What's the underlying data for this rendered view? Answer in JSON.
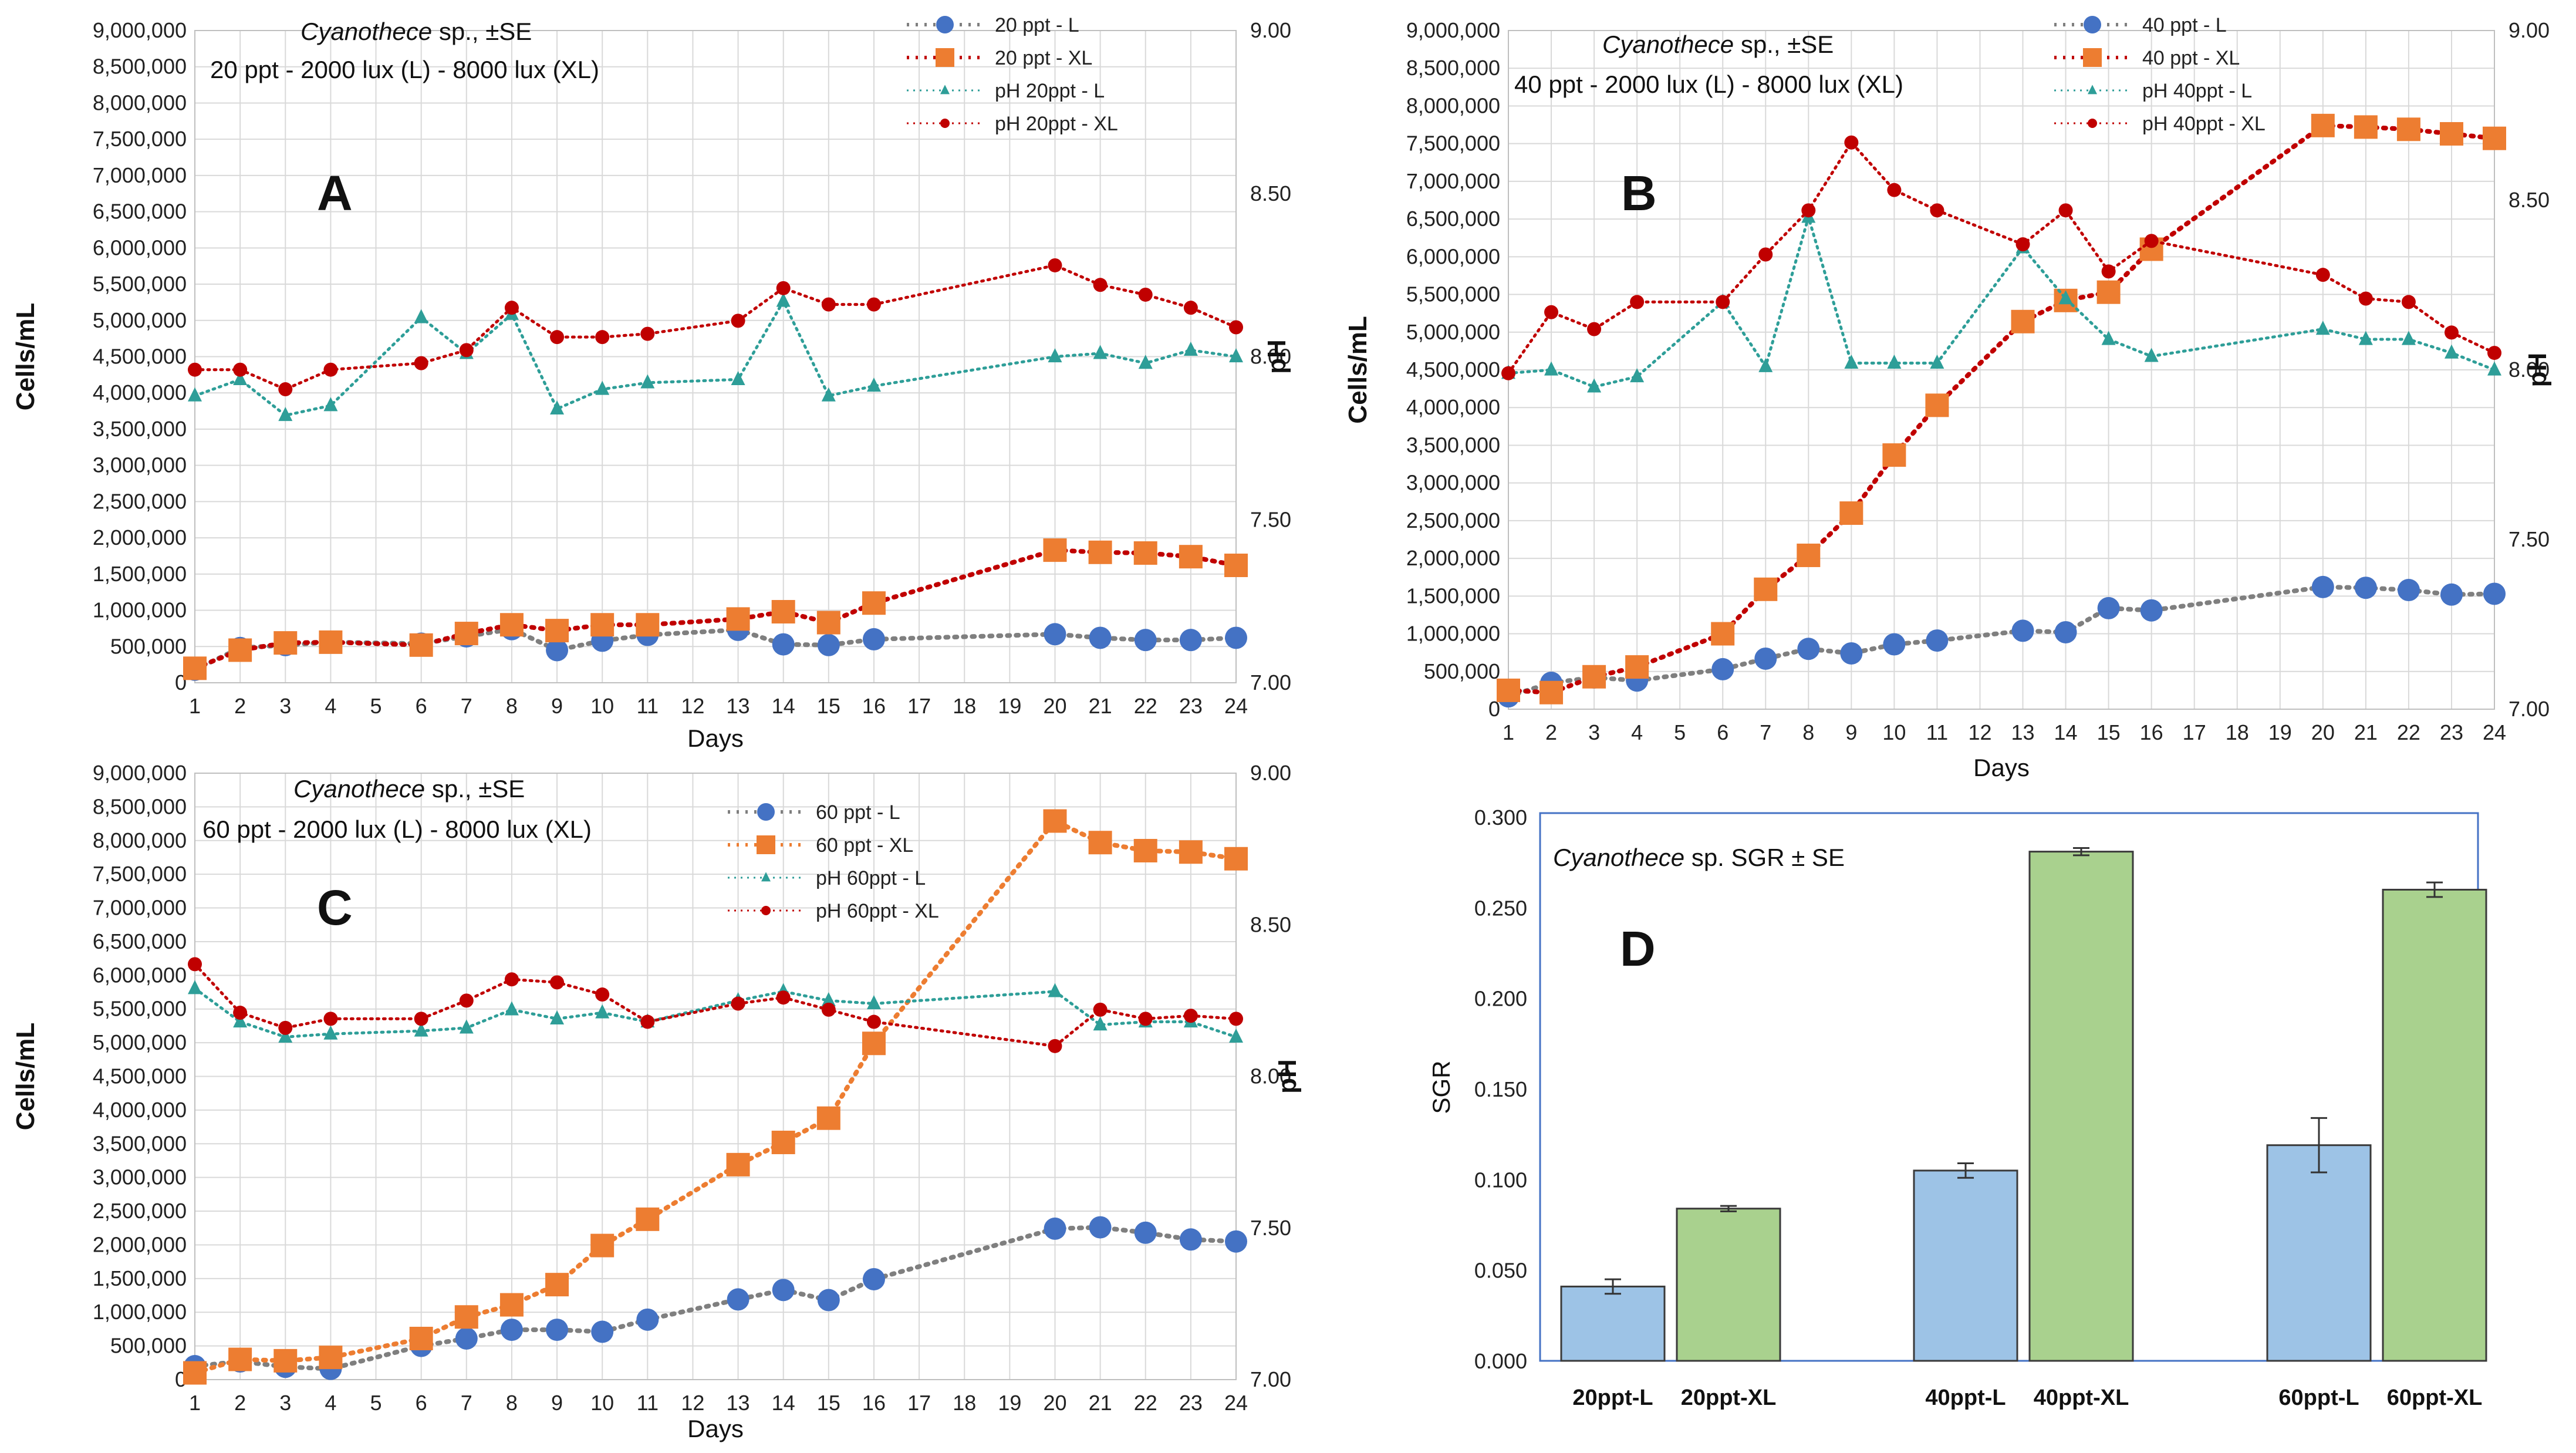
{
  "colors": {
    "L": "#4472C4",
    "XL": "#ED7D31",
    "XL_line_A": "#C00000",
    "XL_line_B": "#C00000",
    "XL_line_C": "#ED7D31",
    "L_line": "#7F7F7F",
    "pH_L": "#2E9E98",
    "pH_XL": "#C00000",
    "bar_L": "#9DC3E6",
    "bar_XL": "#A9D18E",
    "grid": "#D9D9D9",
    "frame": "#4472C4"
  },
  "line_charts": [
    {
      "id": "A",
      "panel_letter": "A",
      "title_species": "Cyanothece",
      "title_rest": " sp., ±SE",
      "subtitle": "20 ppt - 2000 lux (L) - 8000 lux (XL)",
      "xlabel": "Days",
      "ylabel": "Cells/mL",
      "ylabel2": "pH",
      "y_ticks": [
        "0",
        "500,000",
        "1,000,000",
        "1,500,000",
        "2,000,000",
        "2,500,000",
        "3,000,000",
        "3,500,000",
        "4,000,000",
        "4,500,000",
        "5,000,000",
        "5,500,000",
        "6,000,000",
        "6,500,000",
        "7,000,000",
        "7,500,000",
        "8,000,000",
        "8,500,000",
        "9,000,000"
      ],
      "y2_ticks": [
        "7.00",
        "7.50",
        "8.00",
        "8.50",
        "9.00"
      ],
      "x_ticks": [
        "1",
        "2",
        "3",
        "4",
        "5",
        "6",
        "7",
        "8",
        "9",
        "10",
        "11",
        "12",
        "13",
        "14",
        "15",
        "16",
        "17",
        "18",
        "19",
        "20",
        "21",
        "22",
        "23",
        "24"
      ],
      "legend": [
        "20 ppt - L",
        "20 ppt - XL",
        "pH 20ppt - L",
        "pH 20ppt - XL"
      ]
    },
    {
      "id": "B",
      "panel_letter": "B",
      "title_species": "Cyanothece",
      "title_rest": " sp., ±SE",
      "subtitle": "40 ppt - 2000 lux (L) - 8000 lux (XL)",
      "xlabel": "Days",
      "ylabel": "Cells/mL",
      "ylabel2": "pH",
      "y_ticks": [
        "0",
        "500,000",
        "1,000,000",
        "1,500,000",
        "2,000,000",
        "2,500,000",
        "3,000,000",
        "3,500,000",
        "4,000,000",
        "4,500,000",
        "5,000,000",
        "5,500,000",
        "6,000,000",
        "6,500,000",
        "7,000,000",
        "7,500,000",
        "8,000,000",
        "8,500,000",
        "9,000,000"
      ],
      "y2_ticks": [
        "7.00",
        "7.50",
        "8.00",
        "8.50",
        "9.00"
      ],
      "x_ticks": [
        "1",
        "2",
        "3",
        "4",
        "5",
        "6",
        "7",
        "8",
        "9",
        "10",
        "11",
        "12",
        "13",
        "14",
        "15",
        "16",
        "17",
        "18",
        "19",
        "20",
        "21",
        "22",
        "23",
        "24"
      ],
      "legend": [
        "40 ppt - L",
        "40 ppt - XL",
        "pH 40ppt - L",
        "pH 40ppt - XL"
      ]
    },
    {
      "id": "C",
      "panel_letter": "C",
      "title_species": "Cyanothece",
      "title_rest": " sp., ±SE",
      "subtitle": "60 ppt - 2000 lux (L) - 8000 lux (XL)",
      "xlabel": "Days",
      "ylabel": "Cells/mL",
      "ylabel2": "pH",
      "y_ticks": [
        "0",
        "500,000",
        "1,000,000",
        "1,500,000",
        "2,000,000",
        "2,500,000",
        "3,000,000",
        "3,500,000",
        "4,000,000",
        "4,500,000",
        "5,000,000",
        "5,500,000",
        "6,000,000",
        "6,500,000",
        "7,000,000",
        "7,500,000",
        "8,000,000",
        "8,500,000",
        "9,000,000"
      ],
      "y2_ticks": [
        "7.00",
        "7.50",
        "8.00",
        "8.50",
        "9.00"
      ],
      "x_ticks": [
        "1",
        "2",
        "3",
        "4",
        "5",
        "6",
        "7",
        "8",
        "9",
        "10",
        "11",
        "12",
        "13",
        "14",
        "15",
        "16",
        "17",
        "18",
        "19",
        "20",
        "21",
        "22",
        "23",
        "24"
      ],
      "legend": [
        "60 ppt - L",
        "60 ppt - XL",
        "pH 60ppt - L",
        "pH 60ppt - XL"
      ]
    }
  ],
  "bar_chart": {
    "panel_letter": "D",
    "title_species": "Cyanothece",
    "title_rest": " sp. SGR ± SE",
    "ylabel": "SGR",
    "y_ticks": [
      "0.000",
      "0.050",
      "0.100",
      "0.150",
      "0.200",
      "0.250",
      "0.300"
    ],
    "categories": [
      "20ppt-L",
      "20ppt-XL",
      "40ppt-L",
      "40ppt-XL",
      "60ppt-L",
      "60ppt-XL"
    ]
  },
  "chart_data": [
    {
      "type": "line",
      "panel": "A",
      "title": "Cyanothece sp., ±SE",
      "subtitle": "20 ppt - 2000 lux (L) - 8000 lux (XL)",
      "xlabel": "Days",
      "ylabel": "Cells/mL",
      "y2label": "pH",
      "ylim": [
        0,
        9000000
      ],
      "y2lim": [
        7.0,
        9.0
      ],
      "x": [
        1,
        2,
        3,
        4,
        6,
        7,
        8,
        9,
        10,
        11,
        13,
        14,
        15,
        16,
        20,
        21,
        22,
        23,
        24
      ],
      "series": [
        {
          "name": "20 ppt - L",
          "axis": "y",
          "values": [
            180000,
            480000,
            520000,
            560000,
            540000,
            640000,
            740000,
            450000,
            580000,
            660000,
            730000,
            530000,
            520000,
            600000,
            670000,
            620000,
            590000,
            590000,
            620000
          ]
        },
        {
          "name": "20 ppt - XL",
          "axis": "y",
          "values": [
            200000,
            450000,
            550000,
            560000,
            520000,
            680000,
            800000,
            720000,
            800000,
            800000,
            880000,
            980000,
            830000,
            1100000,
            1830000,
            1800000,
            1790000,
            1740000,
            1620000
          ]
        },
        {
          "name": "pH 20ppt - L",
          "axis": "y2",
          "values": [
            7.88,
            7.93,
            7.82,
            7.85,
            8.12,
            8.01,
            8.13,
            7.84,
            7.9,
            7.92,
            7.93,
            8.17,
            7.88,
            7.91,
            8.0,
            8.01,
            7.98,
            8.02,
            8.0
          ]
        },
        {
          "name": "pH 20ppt - XL",
          "axis": "y2",
          "values": [
            7.96,
            7.96,
            7.9,
            7.96,
            7.98,
            8.02,
            8.15,
            8.06,
            8.06,
            8.07,
            8.11,
            8.21,
            8.16,
            8.16,
            8.28,
            8.22,
            8.19,
            8.15,
            8.09
          ]
        }
      ]
    },
    {
      "type": "line",
      "panel": "B",
      "title": "Cyanothece sp., ±SE",
      "subtitle": "40 ppt - 2000 lux (L) - 8000 lux (XL)",
      "xlabel": "Days",
      "ylabel": "Cells/mL",
      "y2label": "pH",
      "ylim": [
        0,
        9000000
      ],
      "y2lim": [
        7.0,
        9.0
      ],
      "x": [
        1,
        2,
        3,
        4,
        6,
        7,
        8,
        9,
        10,
        11,
        13,
        14,
        15,
        16,
        20,
        21,
        22,
        23,
        24
      ],
      "series": [
        {
          "name": "40 ppt - L",
          "axis": "y",
          "values": [
            170000,
            350000,
            420000,
            380000,
            530000,
            670000,
            800000,
            740000,
            860000,
            910000,
            1040000,
            1020000,
            1340000,
            1310000,
            1620000,
            1610000,
            1580000,
            1520000,
            1530000
          ]
        },
        {
          "name": "40 ppt - XL",
          "axis": "y",
          "values": [
            250000,
            220000,
            430000,
            560000,
            1000000,
            1590000,
            2040000,
            2600000,
            3370000,
            4030000,
            5140000,
            5420000,
            5530000,
            6100000,
            7740000,
            7720000,
            7690000,
            7630000,
            7570000
          ]
        },
        {
          "name": "pH 40ppt - L",
          "axis": "y2",
          "values": [
            7.99,
            8.0,
            7.95,
            7.98,
            8.2,
            8.01,
            8.45,
            8.02,
            8.02,
            8.02,
            8.36,
            8.21,
            8.09,
            8.04,
            8.12,
            8.09,
            8.09,
            8.05,
            8.0
          ]
        },
        {
          "name": "pH 40ppt - XL",
          "axis": "y2",
          "values": [
            7.99,
            8.17,
            8.12,
            8.2,
            8.2,
            8.34,
            8.47,
            8.67,
            8.53,
            8.47,
            8.37,
            8.47,
            8.29,
            8.38,
            8.28,
            8.21,
            8.2,
            8.11,
            8.05
          ]
        }
      ]
    },
    {
      "type": "line",
      "panel": "C",
      "title": "Cyanothece sp., ±SE",
      "subtitle": "60 ppt - 2000 lux (L) - 8000 lux (XL)",
      "xlabel": "Days",
      "ylabel": "Cells/mL",
      "y2label": "pH",
      "ylim": [
        0,
        9000000
      ],
      "y2lim": [
        7.0,
        9.0
      ],
      "x": [
        1,
        2,
        3,
        4,
        6,
        7,
        8,
        9,
        10,
        11,
        13,
        14,
        15,
        16,
        20,
        21,
        22,
        23,
        24
      ],
      "series": [
        {
          "name": "60 ppt - L",
          "axis": "y",
          "values": [
            200000,
            270000,
            190000,
            160000,
            500000,
            610000,
            740000,
            740000,
            710000,
            890000,
            1190000,
            1330000,
            1180000,
            1490000,
            2240000,
            2260000,
            2180000,
            2080000,
            2050000
          ]
        },
        {
          "name": "60 ppt - XL",
          "axis": "y",
          "values": [
            100000,
            300000,
            280000,
            330000,
            610000,
            930000,
            1110000,
            1410000,
            1990000,
            2380000,
            3190000,
            3520000,
            3880000,
            4990000,
            8290000,
            7970000,
            7850000,
            7830000,
            7730000
          ]
        },
        {
          "name": "pH 60ppt - L",
          "axis": "y2",
          "values": [
            8.29,
            8.18,
            8.13,
            8.14,
            8.15,
            8.16,
            8.22,
            8.19,
            8.21,
            8.18,
            8.25,
            8.28,
            8.25,
            8.24,
            8.28,
            8.17,
            8.18,
            8.18,
            8.13
          ]
        },
        {
          "name": "pH 60ppt - XL",
          "axis": "y2",
          "values": [
            8.37,
            8.21,
            8.16,
            8.19,
            8.19,
            8.25,
            8.32,
            8.31,
            8.27,
            8.18,
            8.24,
            8.26,
            8.22,
            8.18,
            8.1,
            8.22,
            8.19,
            8.2,
            8.19
          ]
        }
      ]
    },
    {
      "type": "bar",
      "panel": "D",
      "title": "Cyanothece sp. SGR ± SE",
      "xlabel": "",
      "ylabel": "SGR",
      "ylim": [
        0,
        0.3
      ],
      "categories": [
        "20ppt-L",
        "20ppt-XL",
        "40ppt-L",
        "40ppt-XL",
        "60ppt-L",
        "60ppt-XL"
      ],
      "values": [
        0.041,
        0.084,
        0.105,
        0.281,
        0.119,
        0.26
      ],
      "errors": [
        0.004,
        0.0015,
        0.004,
        0.002,
        0.015,
        0.004
      ]
    }
  ]
}
